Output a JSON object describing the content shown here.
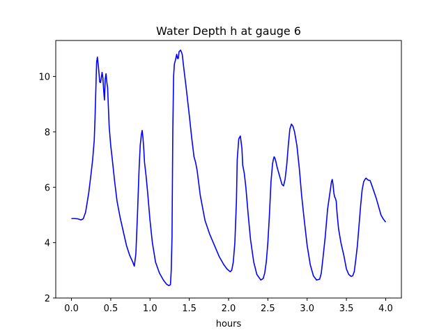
{
  "chart_data": {
    "type": "line",
    "title": "Water Depth h at gauge 6",
    "xlabel": "hours",
    "ylabel": "",
    "xlim": [
      -0.2,
      4.2
    ],
    "ylim": [
      2,
      11.3
    ],
    "xticks": [
      0.0,
      0.5,
      1.0,
      1.5,
      2.0,
      2.5,
      3.0,
      3.5,
      4.0
    ],
    "xtick_labels": [
      "0.0",
      "0.5",
      "1.0",
      "1.5",
      "2.0",
      "2.5",
      "3.0",
      "3.5",
      "4.0"
    ],
    "yticks": [
      2,
      4,
      6,
      8,
      10
    ],
    "ytick_labels": [
      "2",
      "4",
      "6",
      "8",
      "10"
    ],
    "grid": false,
    "series": [
      {
        "name": "",
        "color": "#0000ff",
        "x": [
          0.0,
          0.04,
          0.08,
          0.12,
          0.15,
          0.18,
          0.22,
          0.25,
          0.27,
          0.29,
          0.3,
          0.31,
          0.32,
          0.33,
          0.345,
          0.36,
          0.37,
          0.38,
          0.39,
          0.4,
          0.41,
          0.42,
          0.43,
          0.44,
          0.45,
          0.46,
          0.47,
          0.48,
          0.5,
          0.52,
          0.55,
          0.58,
          0.62,
          0.66,
          0.7,
          0.74,
          0.78,
          0.8,
          0.82,
          0.84,
          0.86,
          0.875,
          0.89,
          0.9,
          0.91,
          0.92,
          0.93,
          0.95,
          0.97,
          1.0,
          1.03,
          1.07,
          1.12,
          1.17,
          1.21,
          1.24,
          1.26,
          1.27,
          1.28,
          1.29,
          1.3,
          1.31,
          1.32,
          1.34,
          1.35,
          1.36,
          1.37,
          1.39,
          1.41,
          1.43,
          1.46,
          1.5,
          1.53,
          1.56,
          1.58,
          1.6,
          1.64,
          1.7,
          1.76,
          1.82,
          1.88,
          1.94,
          1.98,
          2.02,
          2.04,
          2.06,
          2.08,
          2.1,
          2.11,
          2.13,
          2.15,
          2.17,
          2.18,
          2.2,
          2.22,
          2.25,
          2.28,
          2.32,
          2.36,
          2.41,
          2.44,
          2.46,
          2.48,
          2.5,
          2.52,
          2.54,
          2.56,
          2.57,
          2.58,
          2.59,
          2.6,
          2.62,
          2.64,
          2.66,
          2.68,
          2.7,
          2.72,
          2.74,
          2.76,
          2.78,
          2.8,
          2.82,
          2.84,
          2.87,
          2.9,
          2.93,
          2.96,
          3.0,
          3.04,
          3.08,
          3.12,
          3.16,
          3.18,
          3.2,
          3.23,
          3.26,
          3.29,
          3.31,
          3.32,
          3.33,
          3.34,
          3.35,
          3.36,
          3.37,
          3.38,
          3.4,
          3.43,
          3.47,
          3.5,
          3.53,
          3.56,
          3.58,
          3.6,
          3.62,
          3.64,
          3.66,
          3.68,
          3.7,
          3.72,
          3.74,
          3.75,
          3.76,
          3.78,
          3.8,
          3.82,
          3.85,
          3.88,
          3.91,
          3.94,
          3.97,
          4.0
        ],
        "y": [
          4.87,
          4.87,
          4.86,
          4.82,
          4.86,
          5.1,
          5.8,
          6.5,
          7.0,
          7.7,
          8.5,
          9.5,
          10.5,
          10.7,
          10.3,
          9.8,
          9.78,
          9.95,
          10.15,
          9.95,
          9.5,
          9.15,
          9.9,
          10.1,
          9.8,
          9.6,
          8.9,
          8.2,
          7.5,
          7.0,
          6.2,
          5.5,
          4.9,
          4.4,
          3.9,
          3.55,
          3.3,
          3.15,
          3.6,
          5.0,
          6.6,
          7.5,
          7.9,
          8.05,
          7.8,
          7.4,
          6.9,
          6.4,
          5.8,
          4.8,
          4.0,
          3.3,
          2.9,
          2.65,
          2.5,
          2.45,
          2.48,
          3.0,
          4.2,
          8.0,
          10.0,
          10.45,
          10.55,
          10.8,
          10.65,
          10.65,
          10.9,
          10.95,
          10.8,
          10.3,
          9.6,
          8.6,
          7.8,
          7.1,
          6.9,
          6.6,
          5.7,
          4.8,
          4.3,
          3.9,
          3.5,
          3.2,
          3.05,
          2.95,
          3.0,
          3.3,
          4.0,
          5.5,
          7.0,
          7.75,
          7.85,
          7.4,
          6.8,
          6.5,
          6.0,
          5.0,
          4.1,
          3.3,
          2.85,
          2.65,
          2.7,
          2.9,
          3.3,
          4.0,
          5.0,
          6.2,
          6.85,
          7.0,
          7.1,
          7.05,
          6.95,
          6.7,
          6.5,
          6.3,
          6.1,
          6.05,
          6.3,
          6.8,
          7.5,
          8.1,
          8.28,
          8.2,
          8.0,
          7.5,
          6.7,
          5.7,
          4.9,
          3.9,
          3.2,
          2.8,
          2.65,
          2.68,
          2.9,
          3.4,
          4.2,
          5.2,
          5.8,
          6.2,
          6.28,
          6.1,
          5.8,
          5.65,
          5.6,
          5.5,
          5.1,
          4.5,
          4.0,
          3.5,
          3.05,
          2.85,
          2.78,
          2.8,
          2.95,
          3.4,
          3.9,
          4.6,
          5.3,
          5.9,
          6.2,
          6.3,
          6.33,
          6.3,
          6.25,
          6.25,
          6.1,
          5.85,
          5.6,
          5.3,
          5.0,
          4.85,
          4.74
        ]
      }
    ]
  }
}
